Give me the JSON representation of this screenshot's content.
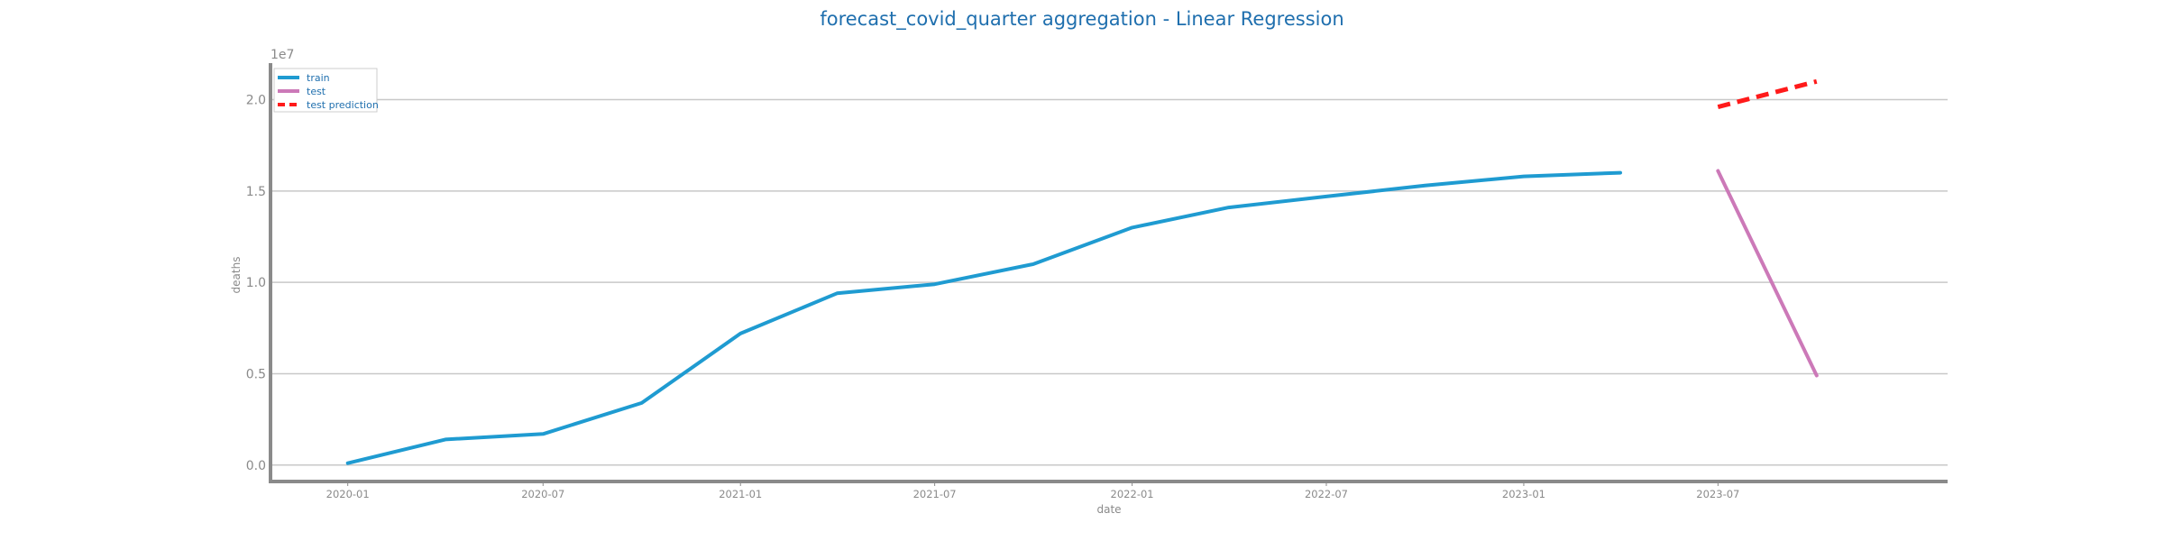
{
  "chart_data": {
    "type": "line",
    "title": "forecast_covid_quarter aggregation - Linear Regression",
    "xlabel": "date",
    "ylabel": "deaths",
    "y_offset_label": "1e7",
    "x_axis_type": "date",
    "xlim": [
      "2019-10-21",
      "2024-01-31"
    ],
    "ylim": [
      -0.09,
      2.2
    ],
    "y_scale_multiplier": "1e7",
    "x_ticks": [
      "2020-01-01",
      "2020-07-01",
      "2021-01-01",
      "2021-07-01",
      "2022-01-01",
      "2022-07-01",
      "2023-01-01",
      "2023-07-01"
    ],
    "x_tick_labels": [
      "2020-01",
      "2020-07",
      "2021-01",
      "2021-07",
      "2022-01",
      "2022-07",
      "2023-01",
      "2023-07"
    ],
    "y_ticks": [
      0.0,
      0.5,
      1.0,
      1.5,
      2.0
    ],
    "y_tick_labels": [
      "0.0",
      "0.5",
      "1.0",
      "1.5",
      "2.0"
    ],
    "grid": "horizontal",
    "legend": "top-left",
    "series": [
      {
        "name": "train",
        "color": "#1f9bd1",
        "style": "solid",
        "x": [
          "2020-01-01",
          "2020-04-01",
          "2020-07-01",
          "2020-10-01",
          "2021-01-01",
          "2021-04-01",
          "2021-07-01",
          "2021-10-01",
          "2022-01-01",
          "2022-04-01",
          "2022-07-01",
          "2022-10-01",
          "2023-01-01",
          "2023-04-01"
        ],
        "y": [
          0.01,
          0.14,
          0.17,
          0.34,
          0.72,
          0.94,
          0.99,
          1.1,
          1.3,
          1.41,
          1.47,
          1.53,
          1.58,
          1.6
        ]
      },
      {
        "name": "test",
        "color": "#cc79b8",
        "style": "solid",
        "x": [
          "2023-07-01",
          "2023-10-01"
        ],
        "y": [
          1.61,
          0.49
        ]
      },
      {
        "name": "test prediction",
        "color": "#ff1a1a",
        "style": "dashed",
        "x": [
          "2023-07-01",
          "2023-10-01"
        ],
        "y": [
          1.96,
          2.1
        ]
      }
    ]
  }
}
